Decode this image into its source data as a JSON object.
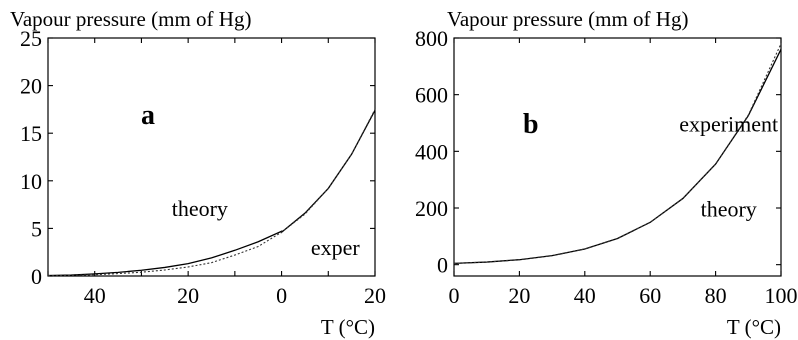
{
  "chart_data": [
    {
      "type": "line",
      "panel_label": "a",
      "ylabel": "Vapour pressure (mm of Hg)",
      "xlabel": "T (°C)",
      "x_ticks": [
        -50,
        -40,
        -30,
        -20,
        -10,
        0,
        10,
        20
      ],
      "x_tick_labels": [
        "",
        "40",
        "",
        "20",
        "",
        "0",
        "",
        "20"
      ],
      "y_ticks": [
        0,
        5,
        10,
        15,
        20,
        25
      ],
      "y_tick_labels": [
        "0",
        "5",
        "10",
        "15",
        "20",
        "25"
      ],
      "xlim": [
        -50,
        20
      ],
      "ylim": [
        0,
        25
      ],
      "annotations": [
        {
          "text": "theory",
          "x": -17.5,
          "y": 6.3
        },
        {
          "text": "exper",
          "x": 11.5,
          "y": 2.2
        }
      ],
      "series": [
        {
          "style": "solid",
          "x": [
            -50,
            -45,
            -40,
            -35,
            -30,
            -25,
            -20,
            -15,
            -10,
            -5,
            0,
            0,
            5,
            10,
            15,
            20
          ],
          "y": [
            0.05,
            0.1,
            0.22,
            0.38,
            0.6,
            0.9,
            1.3,
            1.9,
            2.7,
            3.6,
            4.7,
            4.6,
            6.6,
            9.2,
            12.8,
            17.4
          ]
        },
        {
          "style": "dotted",
          "x": [
            -50,
            -45,
            -40,
            -35,
            -30,
            -25,
            -20,
            -15,
            -10,
            -5,
            0,
            5,
            10,
            15,
            20
          ],
          "y": [
            0.03,
            0.06,
            0.14,
            0.25,
            0.4,
            0.63,
            0.95,
            1.4,
            2.2,
            3.1,
            4.6,
            6.5,
            9.2,
            12.8,
            17.5
          ]
        }
      ]
    },
    {
      "type": "line",
      "panel_label": "b",
      "ylabel": "Vapour pressure (mm of Hg)",
      "xlabel": "T (°C)",
      "x_ticks": [
        0,
        20,
        40,
        60,
        80,
        100
      ],
      "x_tick_labels": [
        "0",
        "20",
        "40",
        "60",
        "80",
        "100"
      ],
      "y_ticks": [
        0,
        200,
        400,
        600,
        800
      ],
      "y_tick_labels": [
        "0",
        "200",
        "400",
        "600",
        "800"
      ],
      "xlim": [
        0,
        100
      ],
      "ylim": [
        -40,
        800
      ],
      "annotations": [
        {
          "text": "experiment",
          "x": 84,
          "y": 470
        },
        {
          "text": "theory",
          "x": 84,
          "y": 170
        }
      ],
      "series": [
        {
          "style": "solid",
          "x": [
            0,
            10,
            20,
            30,
            40,
            50,
            60,
            70,
            80,
            90,
            100
          ],
          "y": [
            4.6,
            9.2,
            17.5,
            31.8,
            55.3,
            92.5,
            149.4,
            233.7,
            355.1,
            525.8,
            760
          ]
        },
        {
          "style": "dotted",
          "x": [
            0,
            10,
            20,
            30,
            40,
            50,
            60,
            70,
            80,
            90,
            100
          ],
          "y": [
            4.6,
            9.2,
            17.6,
            31.9,
            55.5,
            92.6,
            149.6,
            233.8,
            355.5,
            528,
            780
          ]
        }
      ]
    }
  ]
}
